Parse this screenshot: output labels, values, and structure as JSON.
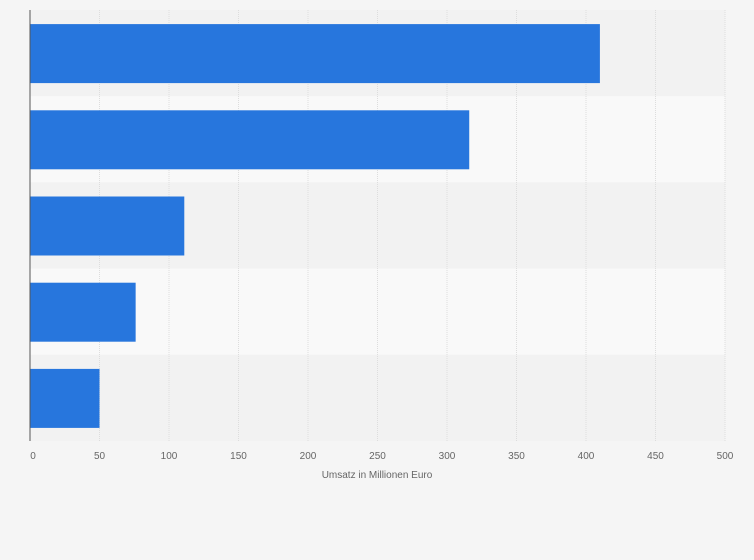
{
  "chart_data": {
    "type": "bar",
    "orientation": "horizontal",
    "categories": [
      "",
      "",
      "",
      "",
      ""
    ],
    "values": [
      410,
      316,
      111,
      76,
      50
    ],
    "title": "",
    "xlabel": "Umsatz in Millionen Euro",
    "ylabel": "",
    "xlim": [
      0,
      500
    ],
    "xticks": [
      0,
      50,
      100,
      150,
      200,
      250,
      300,
      350,
      400,
      450,
      500
    ],
    "grid": true,
    "bar_color": "#2776dd",
    "band_colors": [
      "#f2f2f2",
      "#f9f9f9"
    ]
  }
}
